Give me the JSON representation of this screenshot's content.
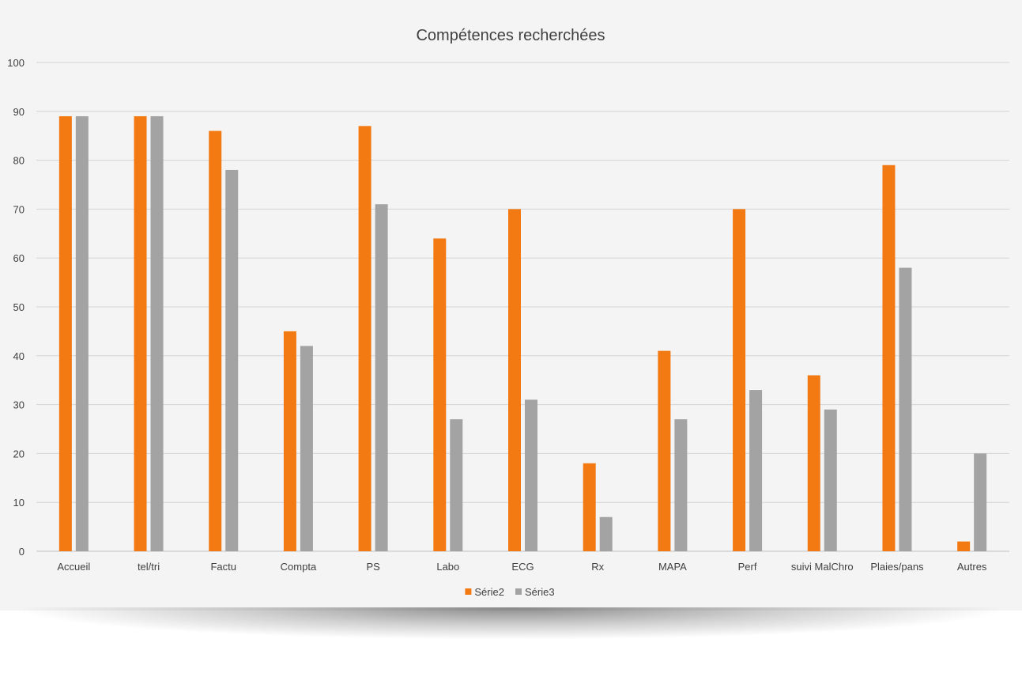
{
  "chart_data": {
    "type": "bar",
    "title": "Compétences recherchées",
    "xlabel": "",
    "ylabel": "",
    "categories": [
      "Accueil",
      "tel/tri",
      "Factu",
      "Compta",
      "PS",
      "Labo",
      "ECG",
      "Rx",
      "MAPA",
      "Perf",
      "suivi MalChro",
      "Plaies/pans",
      "Autres"
    ],
    "series": [
      {
        "name": "Série2",
        "color": "#f37a12",
        "values": [
          89,
          89,
          86,
          45,
          87,
          64,
          70,
          18,
          41,
          70,
          36,
          79,
          2
        ]
      },
      {
        "name": "Série3",
        "color": "#a3a3a3",
        "values": [
          89,
          89,
          78,
          42,
          71,
          27,
          31,
          7,
          27,
          33,
          29,
          58,
          20
        ]
      }
    ],
    "ylim": [
      0,
      100
    ],
    "yticks": [
      0,
      10,
      20,
      30,
      40,
      50,
      60,
      70,
      80,
      90,
      100
    ],
    "grid": true,
    "legend_position": "bottom"
  }
}
